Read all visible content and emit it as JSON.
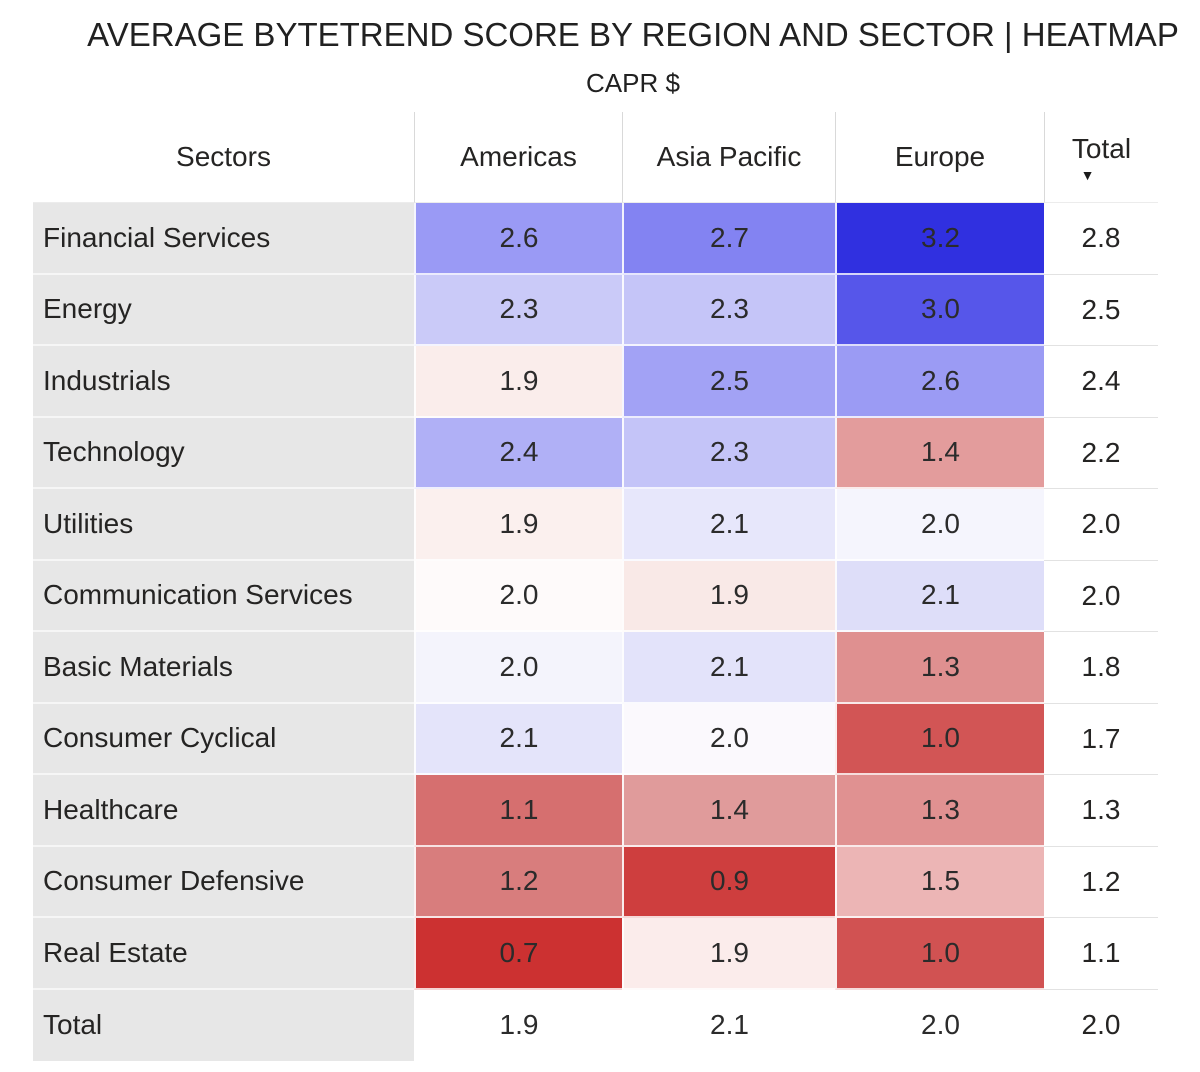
{
  "title": "AVERAGE BYTETREND SCORE BY REGION AND SECTOR | HEATMAP",
  "subtitle": "CAPR $",
  "columns": [
    "Sectors",
    "Americas",
    "Asia Pacific",
    "Europe",
    "Total"
  ],
  "sort": {
    "column": "Total",
    "direction": "descending",
    "icon": "▼"
  },
  "rows": [
    {
      "sector": "Financial Services",
      "cells": [
        {
          "value": "2.6",
          "color": "#9a9af5"
        },
        {
          "value": "2.7",
          "color": "#8383f2"
        },
        {
          "value": "3.2",
          "color": "#3030e0"
        }
      ],
      "total": "2.8"
    },
    {
      "sector": "Energy",
      "cells": [
        {
          "value": "2.3",
          "color": "#cacaf8"
        },
        {
          "value": "2.3",
          "color": "#c5c5f8"
        },
        {
          "value": "3.0",
          "color": "#5656ea"
        }
      ],
      "total": "2.5"
    },
    {
      "sector": "Industrials",
      "cells": [
        {
          "value": "1.9",
          "color": "#faedeb"
        },
        {
          "value": "2.5",
          "color": "#a2a2f5"
        },
        {
          "value": "2.6",
          "color": "#9b9bf4"
        }
      ],
      "total": "2.4"
    },
    {
      "sector": "Technology",
      "cells": [
        {
          "value": "2.4",
          "color": "#b0b0f6"
        },
        {
          "value": "2.3",
          "color": "#c4c4f8"
        },
        {
          "value": "1.4",
          "color": "#e39c9c"
        }
      ],
      "total": "2.2"
    },
    {
      "sector": "Utilities",
      "cells": [
        {
          "value": "1.9",
          "color": "#fbf0ee"
        },
        {
          "value": "2.1",
          "color": "#e7e7fb"
        },
        {
          "value": "2.0",
          "color": "#f5f5fd"
        }
      ],
      "total": "2.0"
    },
    {
      "sector": "Communication Services",
      "cells": [
        {
          "value": "2.0",
          "color": "#fefafa"
        },
        {
          "value": "1.9",
          "color": "#f9e9e7"
        },
        {
          "value": "2.1",
          "color": "#dedef9"
        }
      ],
      "total": "2.0"
    },
    {
      "sector": "Basic Materials",
      "cells": [
        {
          "value": "2.0",
          "color": "#f4f4fc"
        },
        {
          "value": "2.1",
          "color": "#e3e3fa"
        },
        {
          "value": "1.3",
          "color": "#df9090"
        }
      ],
      "total": "1.8"
    },
    {
      "sector": "Consumer Cyclical",
      "cells": [
        {
          "value": "2.1",
          "color": "#e4e4fa"
        },
        {
          "value": "2.0",
          "color": "#fbf9fd"
        },
        {
          "value": "1.0",
          "color": "#d25555"
        }
      ],
      "total": "1.7"
    },
    {
      "sector": "Healthcare",
      "cells": [
        {
          "value": "1.1",
          "color": "#d66f6f"
        },
        {
          "value": "1.4",
          "color": "#e09b9b"
        },
        {
          "value": "1.3",
          "color": "#e09191"
        }
      ],
      "total": "1.3"
    },
    {
      "sector": "Consumer Defensive",
      "cells": [
        {
          "value": "1.2",
          "color": "#d87d7d"
        },
        {
          "value": "0.9",
          "color": "#ce3e3e"
        },
        {
          "value": "1.5",
          "color": "#ecb5b5"
        }
      ],
      "total": "1.2"
    },
    {
      "sector": "Real Estate",
      "cells": [
        {
          "value": "0.7",
          "color": "#cc3131"
        },
        {
          "value": "1.9",
          "color": "#fbeceb"
        },
        {
          "value": "1.0",
          "color": "#d15252"
        }
      ],
      "total": "1.1"
    }
  ],
  "totals_row": {
    "label": "Total",
    "cells": [
      "1.9",
      "2.1",
      "2.0"
    ],
    "total": "2.0"
  },
  "colors": {
    "high_blue": "#3030e0",
    "mid_white": "#fdfdfe",
    "low_red": "#cc3131",
    "row_header_bg": "#e7e7e7",
    "gridline": "#d9d9d9",
    "text": "#252423"
  },
  "chart_data": {
    "type": "heatmap",
    "title": "AVERAGE BYTETREND SCORE BY REGION AND SECTOR | HEATMAP",
    "subtitle": "CAPR $",
    "x_categories": [
      "Americas",
      "Asia Pacific",
      "Europe"
    ],
    "y_categories": [
      "Financial Services",
      "Energy",
      "Industrials",
      "Technology",
      "Utilities",
      "Communication Services",
      "Basic Materials",
      "Consumer Cyclical",
      "Healthcare",
      "Consumer Defensive",
      "Real Estate"
    ],
    "values": [
      [
        2.6,
        2.7,
        3.2
      ],
      [
        2.3,
        2.3,
        3.0
      ],
      [
        1.9,
        2.5,
        2.6
      ],
      [
        2.4,
        2.3,
        1.4
      ],
      [
        1.9,
        2.1,
        2.0
      ],
      [
        2.0,
        1.9,
        2.1
      ],
      [
        2.0,
        2.1,
        1.3
      ],
      [
        2.1,
        2.0,
        1.0
      ],
      [
        1.1,
        1.4,
        1.3
      ],
      [
        1.2,
        0.9,
        1.5
      ],
      [
        0.7,
        1.9,
        1.0
      ]
    ],
    "row_totals": [
      2.8,
      2.5,
      2.4,
      2.2,
      2.0,
      2.0,
      1.8,
      1.7,
      1.3,
      1.2,
      1.1
    ],
    "column_totals": [
      1.9,
      2.1,
      2.0
    ],
    "grand_total": 2.0,
    "value_range": [
      0.7,
      3.2
    ],
    "colormap": "diverging red-white-blue centered near 2.0 (red = low, blue = high)",
    "sort": "rows sorted by Total descending",
    "legend": "none",
    "grid": "thin white separators between cells"
  }
}
